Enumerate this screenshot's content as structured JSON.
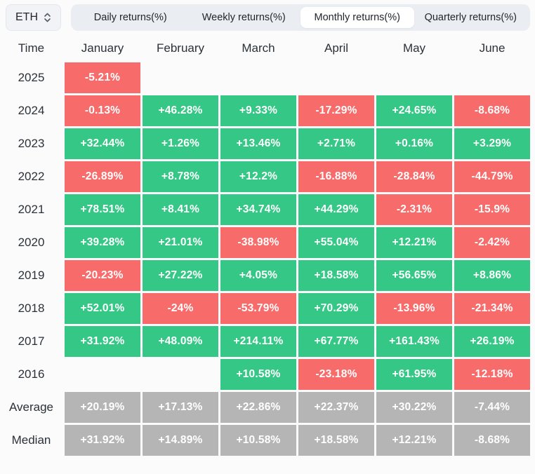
{
  "asset_selector": {
    "value": "ETH",
    "icon": "chevron-up-down"
  },
  "tabs": [
    {
      "label": "Daily returns(%)",
      "active": false
    },
    {
      "label": "Weekly returns(%)",
      "active": false
    },
    {
      "label": "Monthly returns(%)",
      "active": true
    },
    {
      "label": "Quarterly returns(%)",
      "active": false
    }
  ],
  "table": {
    "time_header": "Time",
    "month_headers": [
      "January",
      "February",
      "March",
      "April",
      "May",
      "June"
    ],
    "rows": [
      {
        "label": "2025",
        "cells": [
          {
            "value": "-5.21%",
            "type": "negative"
          },
          null,
          null,
          null,
          null,
          null
        ]
      },
      {
        "label": "2024",
        "cells": [
          {
            "value": "-0.13%",
            "type": "negative"
          },
          {
            "value": "+46.28%",
            "type": "positive"
          },
          {
            "value": "+9.33%",
            "type": "positive"
          },
          {
            "value": "-17.29%",
            "type": "negative"
          },
          {
            "value": "+24.65%",
            "type": "positive"
          },
          {
            "value": "-8.68%",
            "type": "negative"
          }
        ]
      },
      {
        "label": "2023",
        "cells": [
          {
            "value": "+32.44%",
            "type": "positive"
          },
          {
            "value": "+1.26%",
            "type": "positive"
          },
          {
            "value": "+13.46%",
            "type": "positive"
          },
          {
            "value": "+2.71%",
            "type": "positive"
          },
          {
            "value": "+0.16%",
            "type": "positive"
          },
          {
            "value": "+3.29%",
            "type": "positive"
          }
        ]
      },
      {
        "label": "2022",
        "cells": [
          {
            "value": "-26.89%",
            "type": "negative"
          },
          {
            "value": "+8.78%",
            "type": "positive"
          },
          {
            "value": "+12.2%",
            "type": "positive"
          },
          {
            "value": "-16.88%",
            "type": "negative"
          },
          {
            "value": "-28.84%",
            "type": "negative"
          },
          {
            "value": "-44.79%",
            "type": "negative"
          }
        ]
      },
      {
        "label": "2021",
        "cells": [
          {
            "value": "+78.51%",
            "type": "positive"
          },
          {
            "value": "+8.41%",
            "type": "positive"
          },
          {
            "value": "+34.74%",
            "type": "positive"
          },
          {
            "value": "+44.29%",
            "type": "positive"
          },
          {
            "value": "-2.31%",
            "type": "negative"
          },
          {
            "value": "-15.9%",
            "type": "negative"
          }
        ]
      },
      {
        "label": "2020",
        "cells": [
          {
            "value": "+39.28%",
            "type": "positive"
          },
          {
            "value": "+21.01%",
            "type": "positive"
          },
          {
            "value": "-38.98%",
            "type": "negative"
          },
          {
            "value": "+55.04%",
            "type": "positive"
          },
          {
            "value": "+12.21%",
            "type": "positive"
          },
          {
            "value": "-2.42%",
            "type": "negative"
          }
        ]
      },
      {
        "label": "2019",
        "cells": [
          {
            "value": "-20.23%",
            "type": "negative"
          },
          {
            "value": "+27.22%",
            "type": "positive"
          },
          {
            "value": "+4.05%",
            "type": "positive"
          },
          {
            "value": "+18.58%",
            "type": "positive"
          },
          {
            "value": "+56.65%",
            "type": "positive"
          },
          {
            "value": "+8.86%",
            "type": "positive"
          }
        ]
      },
      {
        "label": "2018",
        "cells": [
          {
            "value": "+52.01%",
            "type": "positive"
          },
          {
            "value": "-24%",
            "type": "negative"
          },
          {
            "value": "-53.79%",
            "type": "negative"
          },
          {
            "value": "+70.29%",
            "type": "positive"
          },
          {
            "value": "-13.96%",
            "type": "negative"
          },
          {
            "value": "-21.34%",
            "type": "negative"
          }
        ]
      },
      {
        "label": "2017",
        "cells": [
          {
            "value": "+31.92%",
            "type": "positive"
          },
          {
            "value": "+48.09%",
            "type": "positive"
          },
          {
            "value": "+214.11%",
            "type": "positive"
          },
          {
            "value": "+67.77%",
            "type": "positive"
          },
          {
            "value": "+161.43%",
            "type": "positive"
          },
          {
            "value": "+26.19%",
            "type": "positive"
          }
        ]
      },
      {
        "label": "2016",
        "cells": [
          null,
          null,
          {
            "value": "+10.58%",
            "type": "positive"
          },
          {
            "value": "-23.18%",
            "type": "negative"
          },
          {
            "value": "+61.95%",
            "type": "positive"
          },
          {
            "value": "-12.18%",
            "type": "negative"
          }
        ]
      },
      {
        "label": "Average",
        "cells": [
          {
            "value": "+20.19%",
            "type": "summary"
          },
          {
            "value": "+17.13%",
            "type": "summary"
          },
          {
            "value": "+22.86%",
            "type": "summary"
          },
          {
            "value": "+22.37%",
            "type": "summary"
          },
          {
            "value": "+30.22%",
            "type": "summary"
          },
          {
            "value": "-7.44%",
            "type": "summary"
          }
        ]
      },
      {
        "label": "Median",
        "cells": [
          {
            "value": "+31.92%",
            "type": "summary"
          },
          {
            "value": "+14.89%",
            "type": "summary"
          },
          {
            "value": "+10.58%",
            "type": "summary"
          },
          {
            "value": "+18.58%",
            "type": "summary"
          },
          {
            "value": "+12.21%",
            "type": "summary"
          },
          {
            "value": "-8.68%",
            "type": "summary"
          }
        ]
      }
    ]
  },
  "colors": {
    "positive": "#34c786",
    "negative": "#f76b6a",
    "summary": "#b5b5b5",
    "page_bg": "#fbfbfb",
    "tab_bar_bg": "#eaedf2",
    "active_tab_bg": "#ffffff",
    "text_dark": "#2b3139"
  }
}
